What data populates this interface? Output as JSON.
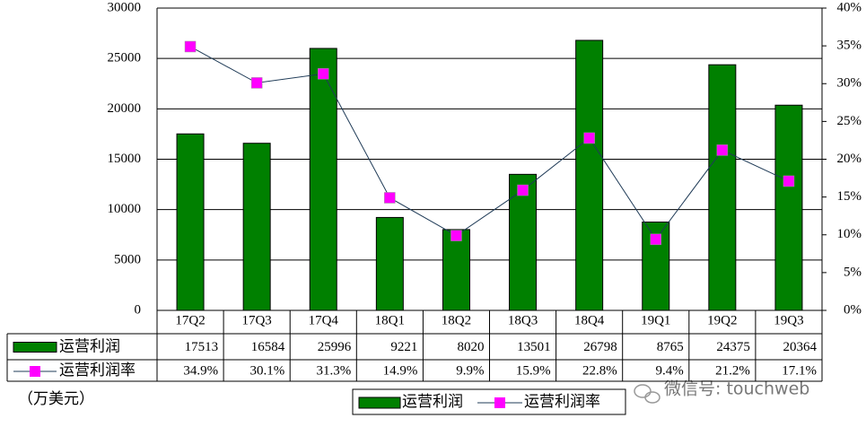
{
  "chart_data": {
    "type": "bar-line-table",
    "categories": [
      "17Q2",
      "17Q3",
      "17Q4",
      "18Q1",
      "18Q2",
      "18Q3",
      "18Q4",
      "19Q1",
      "19Q2",
      "19Q3"
    ],
    "series": [
      {
        "name": "运营利润",
        "type": "bar",
        "color": "#008000",
        "values": [
          17513,
          16584,
          25996,
          9221,
          8020,
          13501,
          26798,
          8765,
          24375,
          20364
        ]
      },
      {
        "name": "运营利润率",
        "type": "line",
        "axis": "y2",
        "color": "#1f3b57",
        "marker_color": "#ff00ff",
        "values": [
          34.9,
          30.1,
          31.3,
          14.9,
          9.9,
          15.9,
          22.8,
          9.4,
          21.2,
          17.1
        ],
        "value_labels": [
          "34.9%",
          "30.1%",
          "31.3%",
          "14.9%",
          "9.9%",
          "15.9%",
          "22.8%",
          "9.4%",
          "21.2%",
          "17.1%"
        ]
      }
    ],
    "ylim": [
      0,
      30000
    ],
    "yticks": [
      0,
      5000,
      10000,
      15000,
      20000,
      25000,
      30000
    ],
    "y2lim": [
      0,
      40
    ],
    "y2ticks": [
      {
        "value": 0,
        "label": "0%"
      },
      {
        "value": 5,
        "label": "5%"
      },
      {
        "value": 10,
        "label": "10%"
      },
      {
        "value": 15,
        "label": "15%"
      },
      {
        "value": 20,
        "label": "20%"
      },
      {
        "value": 25,
        "label": "25%"
      },
      {
        "value": 30,
        "label": "30%"
      },
      {
        "value": 35,
        "label": "35%"
      },
      {
        "value": 40,
        "label": "40%"
      }
    ],
    "grid": true,
    "unit_label": "（万美元）",
    "watermark": "微信号: touchweb"
  }
}
